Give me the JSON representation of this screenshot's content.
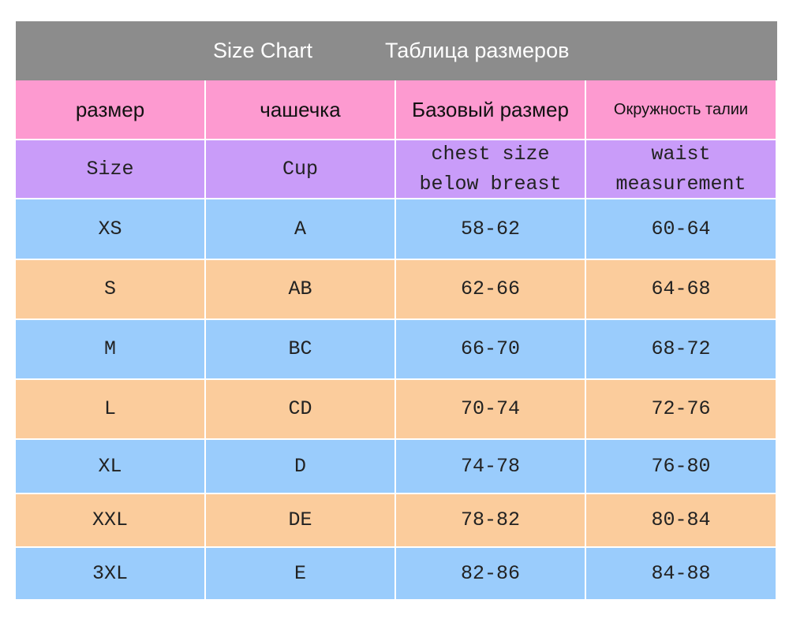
{
  "header": {
    "title_en": "Size Chart",
    "title_ru": "Таблица размеров"
  },
  "table": {
    "header_ru": [
      "размер",
      "чашечка",
      "Базовый размер",
      "Окружность талии"
    ],
    "header_en": [
      "Size",
      "Cup",
      [
        "chest size",
        "below breast"
      ],
      [
        "waist",
        "measurement"
      ]
    ],
    "rows": [
      [
        "XS",
        "A",
        "58-62",
        "60-64"
      ],
      [
        "S",
        "AB",
        "62-66",
        "64-68"
      ],
      [
        "M",
        "BC",
        "66-70",
        "68-72"
      ],
      [
        "L",
        "CD",
        "70-74",
        "72-76"
      ],
      [
        "XL",
        "D",
        "74-78",
        "76-80"
      ],
      [
        "XXL",
        "DE",
        "78-82",
        "80-84"
      ],
      [
        "3XL",
        "E",
        "82-86",
        "84-88"
      ]
    ]
  }
}
